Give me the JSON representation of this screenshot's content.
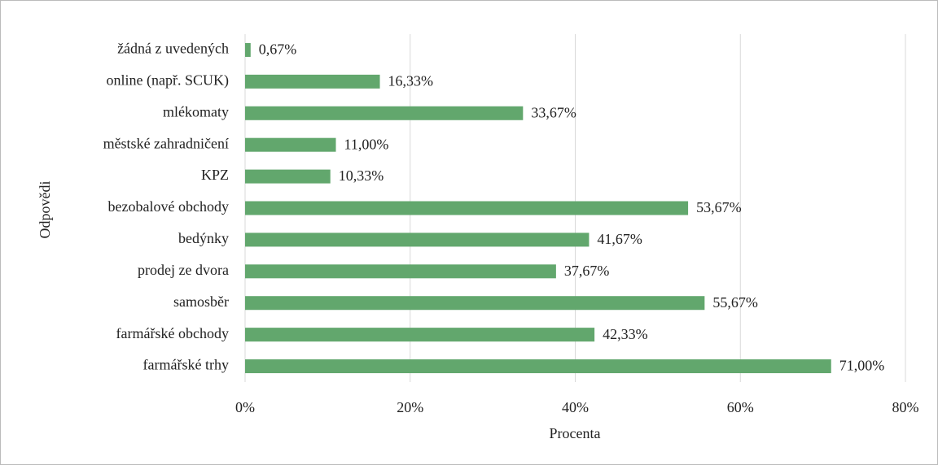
{
  "chart_data": {
    "type": "bar",
    "orientation": "horizontal",
    "x_label": "Procenta",
    "y_label": "Odpovědi",
    "categories": [
      "žádná z uvedených",
      "online (např. SCUK)",
      "mlékomaty",
      "městské zahradničení",
      "KPZ",
      "bezobalové obchody",
      "bedýnky",
      "prodej ze dvora",
      "samosběr",
      "farmářské obchody",
      "farmářské trhy"
    ],
    "values": [
      0.67,
      16.33,
      33.67,
      11.0,
      10.33,
      53.67,
      41.67,
      37.67,
      55.67,
      42.33,
      71.0
    ],
    "value_labels": [
      "0,67%",
      "16,33%",
      "33,67%",
      "11,00%",
      "10,33%",
      "53,67%",
      "41,67%",
      "37,67%",
      "55,67%",
      "42,33%",
      "71,00%"
    ],
    "color": "#62a76d",
    "xlim": [
      0,
      80
    ],
    "xticks": [
      {
        "value": 0,
        "label": "0%"
      },
      {
        "value": 20,
        "label": "20%"
      },
      {
        "value": 40,
        "label": "40%"
      },
      {
        "value": 60,
        "label": "60%"
      },
      {
        "value": 80,
        "label": "80%"
      }
    ],
    "grid": true
  }
}
